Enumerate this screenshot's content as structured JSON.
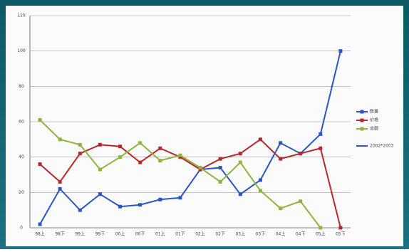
{
  "chart_data": {
    "type": "line",
    "categories": [
      "98上",
      "98下",
      "99上",
      "99下",
      "00上",
      "00下",
      "01上",
      "01下",
      "02上",
      "02下",
      "03上",
      "03下",
      "04上",
      "04下",
      "05上",
      "05下"
    ],
    "series": [
      {
        "name": "数量",
        "color": "#2a55c4",
        "values": [
          2,
          22,
          10,
          19,
          12,
          13,
          16,
          17,
          33,
          34,
          19,
          27,
          48,
          42,
          53,
          100
        ]
      },
      {
        "name": "价格",
        "color": "#b8282a",
        "values": [
          36,
          26,
          42,
          47,
          46,
          37,
          45,
          40,
          33,
          39,
          42,
          50,
          39,
          42,
          45,
          0
        ]
      },
      {
        "name": "金额",
        "color": "#8fb43a",
        "values": [
          61,
          50,
          47,
          33,
          40,
          48,
          38,
          41,
          34,
          26,
          37,
          21,
          11,
          15,
          0,
          null
        ]
      },
      {
        "name": "2002*2003",
        "color": "#2a55c4",
        "values": [
          null,
          null,
          null,
          null,
          null,
          null,
          null,
          null,
          null,
          null,
          null,
          null,
          null,
          null,
          null,
          null
        ]
      }
    ],
    "ylim": [
      0,
      120
    ],
    "yticks": [
      0,
      20,
      40,
      60,
      80,
      100,
      120
    ],
    "grid": true
  }
}
